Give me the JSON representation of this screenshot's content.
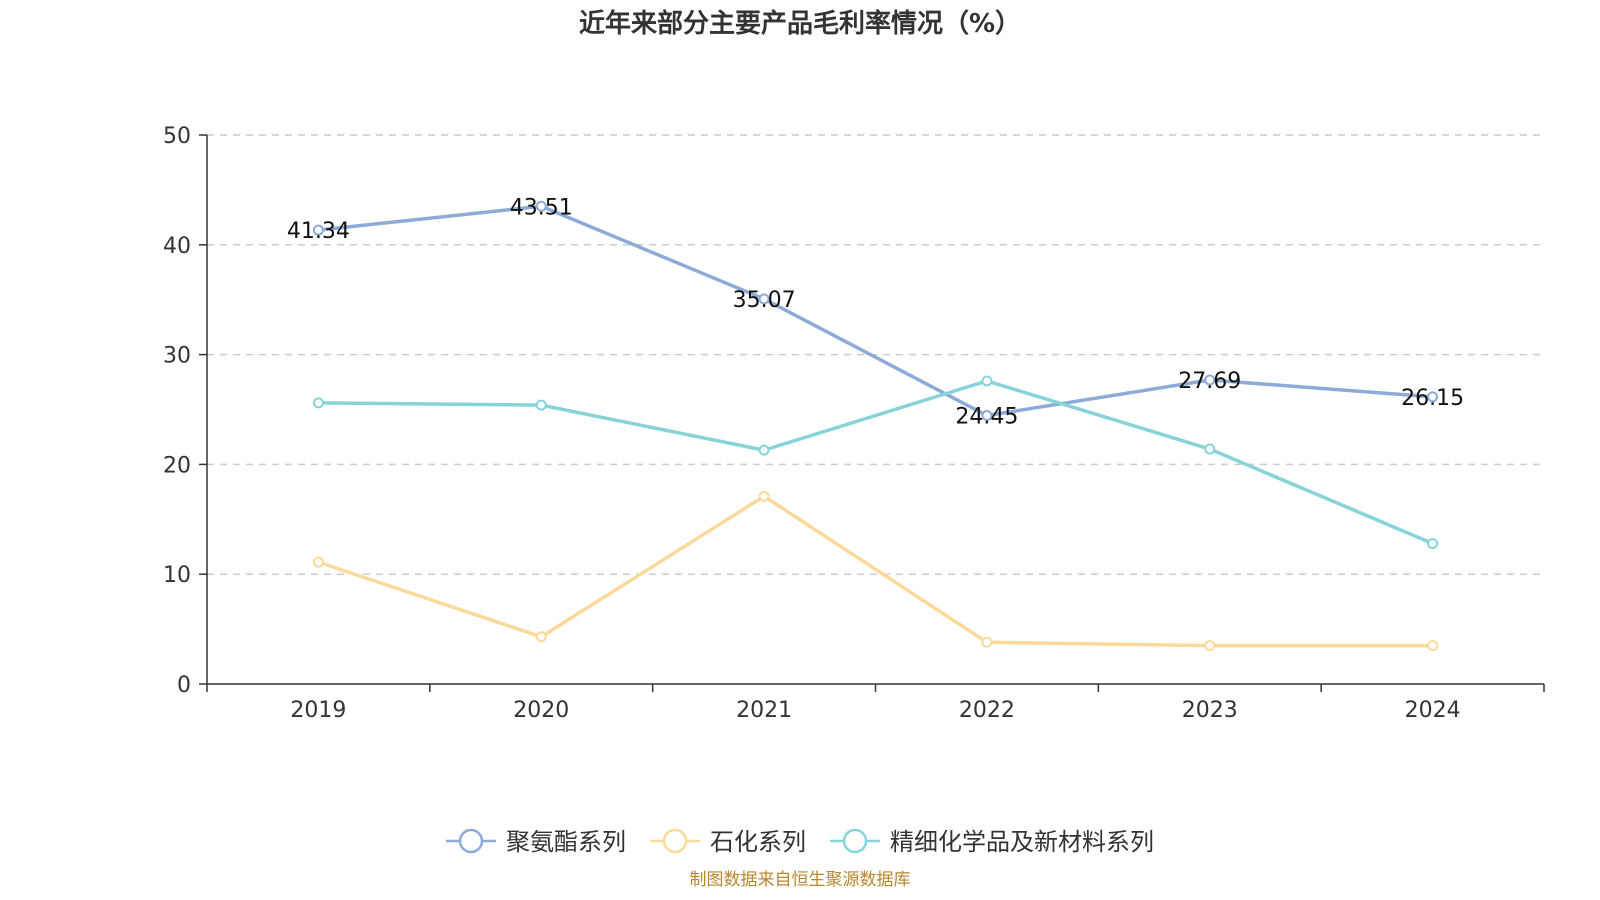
{
  "chart_data": {
    "type": "line",
    "title": "近年来部分主要产品毛利率情况（%）",
    "categories": [
      "2019",
      "2020",
      "2021",
      "2022",
      "2023",
      "2024"
    ],
    "ylim": [
      0,
      50
    ],
    "yticks": [
      0,
      10,
      20,
      30,
      40,
      50
    ],
    "grid": true,
    "legend_position": "bottom",
    "series": [
      {
        "name": "聚氨酯系列",
        "color": "#8eaad8",
        "values": [
          41.34,
          43.51,
          35.07,
          24.45,
          27.69,
          26.15
        ],
        "show_labels": true
      },
      {
        "name": "石化系列",
        "color": "#fbd99a",
        "values": [
          11.1,
          4.3,
          17.1,
          3.8,
          3.5,
          3.5
        ],
        "show_labels": false
      },
      {
        "name": "精细化学品及新材料系列",
        "color": "#86d4d8",
        "values": [
          25.6,
          25.4,
          21.3,
          27.6,
          21.4,
          12.8
        ],
        "show_labels": false
      }
    ],
    "data_labels": [
      "41.34",
      "43.51",
      "35.07",
      "24.45",
      "27.69",
      "26.15"
    ]
  },
  "footer": {
    "source": "制图数据来自恒生聚源数据库",
    "source_color": "#b8862d"
  }
}
